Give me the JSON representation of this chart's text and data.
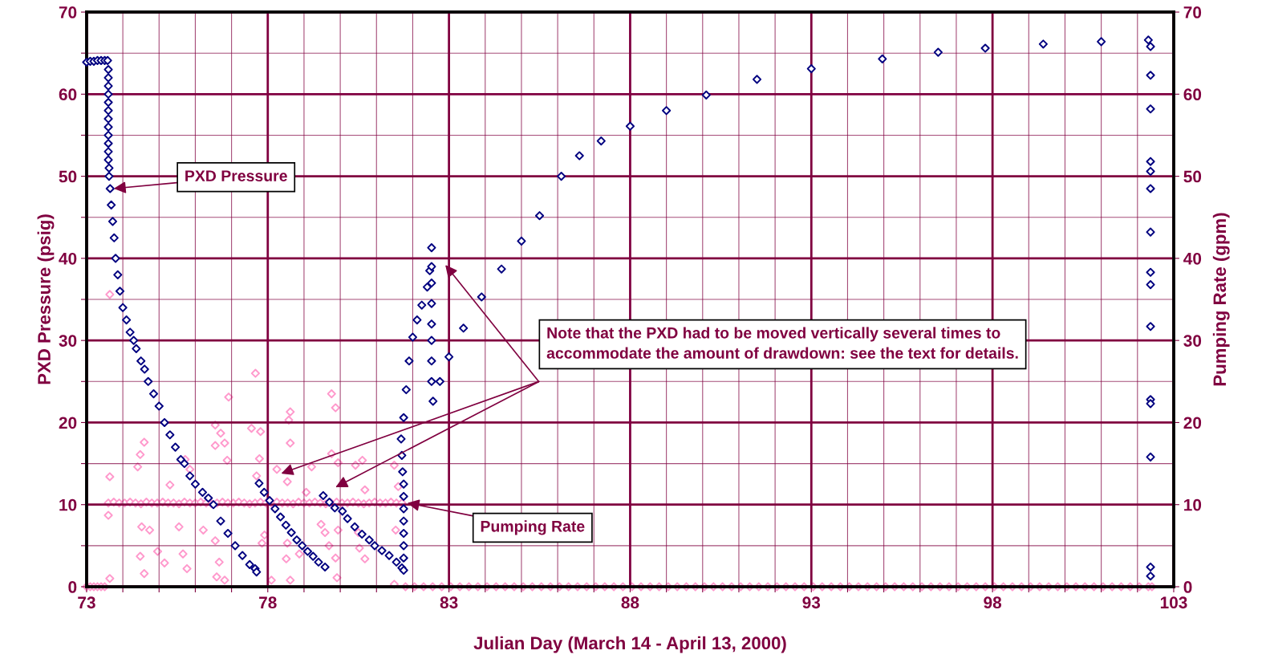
{
  "chart_data": {
    "type": "scatter",
    "xlabel": "Julian Day (March 14 - April 13, 2000)",
    "ylabel": "PXD Pressure (psig)",
    "y2label": "Pumping Rate (gpm)",
    "xlim": [
      73,
      103
    ],
    "xticks": [
      73,
      {
        "value": 74,
        "label": null
      },
      {
        "value": 75,
        "label": null
      },
      {
        "value": 76,
        "label": null
      },
      {
        "value": 77,
        "label": null
      },
      78,
      {
        "value": 79,
        "label": null
      },
      {
        "value": 80,
        "label": null
      },
      {
        "value": 81,
        "label": null
      },
      {
        "value": 82,
        "label": null
      },
      83,
      {
        "value": 84,
        "label": null
      },
      {
        "value": 85,
        "label": null
      },
      {
        "value": 86,
        "label": null
      },
      {
        "value": 87,
        "label": null
      },
      88,
      {
        "value": 89,
        "label": null
      },
      {
        "value": 90,
        "label": null
      },
      {
        "value": 91,
        "label": null
      },
      {
        "value": 92,
        "label": null
      },
      93,
      {
        "value": 94,
        "label": null
      },
      {
        "value": 95,
        "label": null
      },
      {
        "value": 96,
        "label": null
      },
      {
        "value": 97,
        "label": null
      },
      98,
      {
        "value": 99,
        "label": null
      },
      {
        "value": 100,
        "label": null
      },
      {
        "value": 101,
        "label": null
      },
      {
        "value": 102,
        "label": null
      },
      103
    ],
    "ylim": [
      0,
      70
    ],
    "yticks": [
      0,
      {
        "value": 5,
        "label": null
      },
      10,
      {
        "value": 15,
        "label": null
      },
      20,
      {
        "value": 25,
        "label": null
      },
      30,
      {
        "value": 35,
        "label": null
      },
      40,
      {
        "value": 45,
        "label": null
      },
      50,
      {
        "value": 55,
        "label": null
      },
      60,
      {
        "value": 65,
        "label": null
      },
      70
    ],
    "y2lim": [
      0,
      70
    ],
    "y2ticks": [
      0,
      10,
      20,
      30,
      40,
      50,
      60,
      70
    ],
    "grid": true,
    "legend": false,
    "marker": "diamond",
    "annotations": [
      {
        "text": "PXD Pressure",
        "x": 73.75,
        "y": 48.5
      },
      {
        "text": "Pumping Rate",
        "x": 81.85,
        "y": 10.2
      },
      "Note that the PXD had to be moved vertically several times to accommodate the amount of drawdown: see the text for details."
    ],
    "series": [
      {
        "color": "#000080",
        "x": [
          73.0,
          73.1,
          73.2,
          73.3,
          73.4,
          73.5,
          73.58,
          73.6,
          73.6,
          73.6,
          73.6,
          73.6,
          73.6,
          73.6,
          73.6,
          73.6,
          73.6,
          73.6,
          73.6,
          73.62,
          73.62,
          73.65,
          73.68,
          73.72,
          73.76,
          73.8,
          73.86,
          73.92,
          74.0,
          74.1,
          74.2,
          74.3,
          74.37,
          74.5,
          74.6,
          74.7,
          74.85,
          75.0,
          75.15,
          75.3,
          75.45,
          75.6,
          75.7,
          75.85,
          76.0,
          76.2,
          76.36,
          76.5,
          76.7,
          76.9,
          77.1,
          77.3,
          77.5,
          77.65,
          77.69,
          77.76,
          77.9,
          78.05,
          78.2,
          78.35,
          78.5,
          78.65,
          78.8,
          78.95,
          79.1,
          79.25,
          79.4,
          79.58,
          79.53,
          79.7,
          79.85,
          80.06,
          80.2,
          80.4,
          80.6,
          80.8,
          80.95,
          81.15,
          81.35,
          81.55,
          81.7,
          81.75,
          81.75,
          81.75,
          81.75,
          81.75,
          81.75,
          81.75,
          81.75,
          81.72,
          81.7,
          81.68,
          81.75,
          81.82,
          81.9,
          82.0,
          82.12,
          82.25,
          82.4,
          82.47,
          82.52,
          82.52,
          82.52,
          82.52,
          82.52,
          82.52,
          82.52,
          82.52,
          82.56,
          82.75,
          83.0,
          83.4,
          83.9,
          84.45,
          85.0,
          85.5,
          86.1,
          86.6,
          87.2,
          88.0,
          89.0,
          90.1,
          91.5,
          93.0,
          94.96,
          96.5,
          97.8,
          99.4,
          101.0,
          102.3,
          102.36,
          102.36,
          102.36,
          102.36,
          102.36,
          102.36,
          102.36,
          102.36,
          102.36,
          102.36,
          102.36,
          102.36,
          102.36,
          102.36,
          102.36
        ],
        "values": [
          63.9,
          64.0,
          64.0,
          64.1,
          64.1,
          64.1,
          64.1,
          63.0,
          62.0,
          61.0,
          60.0,
          59.0,
          58.0,
          57.0,
          56.0,
          55.0,
          54.0,
          53.0,
          52.0,
          51.0,
          50.0,
          48.5,
          46.5,
          44.5,
          42.5,
          40.0,
          38.0,
          36.0,
          34.0,
          32.5,
          31.0,
          30.0,
          29.0,
          27.5,
          26.5,
          25.0,
          23.5,
          22.0,
          20.0,
          18.5,
          17.0,
          15.5,
          15.0,
          13.5,
          12.5,
          11.5,
          10.8,
          10.0,
          8.0,
          6.5,
          5.0,
          3.8,
          2.7,
          2.2,
          1.8,
          12.6,
          11.5,
          10.5,
          9.5,
          8.5,
          7.5,
          6.6,
          5.7,
          5.0,
          4.3,
          3.7,
          3.0,
          2.4,
          11.1,
          10.3,
          9.6,
          9.2,
          8.3,
          7.3,
          6.4,
          5.7,
          5.0,
          4.4,
          3.8,
          3.0,
          2.3,
          2.0,
          3.5,
          5.0,
          6.5,
          8.0,
          9.5,
          11.0,
          12.5,
          14.0,
          16.0,
          18.0,
          20.6,
          24.0,
          27.5,
          30.4,
          32.5,
          34.3,
          36.5,
          38.5,
          41.3,
          39.0,
          37.0,
          34.5,
          32.0,
          30.0,
          27.5,
          25.0,
          22.6,
          25.0,
          28.0,
          31.5,
          35.3,
          38.7,
          42.1,
          45.2,
          50.0,
          52.5,
          54.3,
          56.1,
          58.0,
          59.9,
          61.8,
          63.1,
          64.3,
          65.1,
          65.6,
          66.1,
          66.4,
          66.6,
          65.8,
          62.3,
          58.2,
          51.8,
          50.6,
          48.5,
          43.2,
          38.3,
          36.8,
          31.7,
          22.8,
          22.3,
          15.8,
          2.4,
          1.3
        ]
      },
      {
        "color": "#ff99cc",
        "axis": "y2",
        "x": [
          73.0,
          73.1,
          73.2,
          73.3,
          73.4,
          73.5,
          73.6,
          73.75,
          73.9,
          74.05,
          74.2,
          74.35,
          74.5,
          74.65,
          74.8,
          74.95,
          75.1,
          75.25,
          75.4,
          75.55,
          75.7,
          75.85,
          76.0,
          76.15,
          76.3,
          76.45,
          76.6,
          76.75,
          76.9,
          77.05,
          77.2,
          77.35,
          77.5,
          77.65,
          77.8,
          77.95,
          78.1,
          78.25,
          78.4,
          78.55,
          78.7,
          78.85,
          79.0,
          79.15,
          79.3,
          79.45,
          79.6,
          79.75,
          79.9,
          80.05,
          80.2,
          80.35,
          80.5,
          80.65,
          80.8,
          80.95,
          81.1,
          81.25,
          81.4,
          81.55,
          81.7,
          73.64,
          73.6,
          73.64,
          73.64,
          74.59,
          74.48,
          74.41,
          74.52,
          74.48,
          74.59,
          74.74,
          74.96,
          75.15,
          75.3,
          75.55,
          75.66,
          75.77,
          75.72,
          75.85,
          76.55,
          76.7,
          76.81,
          76.55,
          76.92,
          76.88,
          76.22,
          76.55,
          76.66,
          76.59,
          76.81,
          77.55,
          77.8,
          77.66,
          77.77,
          77.69,
          77.91,
          77.84,
          78.1,
          78.25,
          78.62,
          78.58,
          78.62,
          78.54,
          78.54,
          78.51,
          78.62,
          78.87,
          79.06,
          79.21,
          79.47,
          79.58,
          79.76,
          79.87,
          79.76,
          79.94,
          79.69,
          79.87,
          79.91,
          79.94,
          80.42,
          80.61,
          80.5,
          80.53,
          80.68,
          80.68,
          81.49,
          81.53,
          81.49,
          81.6,
          81.8,
          82.05,
          82.3,
          82.55,
          82.8,
          83.05,
          83.3,
          83.55,
          83.8,
          84.05,
          84.3,
          84.55,
          84.8,
          85.05,
          85.3,
          85.55,
          85.8,
          86.05,
          86.3,
          86.55,
          86.8,
          87.05,
          87.3,
          87.55,
          87.8,
          88.05,
          88.3,
          88.55,
          88.8,
          89.05,
          89.3,
          89.55,
          89.8,
          90.05,
          90.3,
          90.55,
          90.8,
          91.05,
          91.3,
          91.55,
          91.8,
          92.05,
          92.3,
          92.55,
          92.8,
          93.05,
          93.3,
          93.55,
          93.8,
          94.05,
          94.3,
          94.55,
          94.8,
          95.05,
          95.3,
          95.55,
          95.8,
          96.05,
          96.3,
          96.55,
          96.8,
          97.05,
          97.3,
          97.55,
          97.8,
          98.05,
          98.3,
          98.55,
          98.8,
          99.05,
          99.3,
          99.55,
          99.8,
          100.05,
          100.3,
          100.55,
          100.8,
          101.05,
          101.3,
          101.55,
          101.8,
          102.05,
          102.3,
          102.4
        ],
        "values": [
          0,
          0,
          0,
          0,
          0,
          0,
          10.2,
          10.3,
          10.2,
          10.2,
          10.3,
          10.2,
          10.1,
          10.3,
          10.2,
          10.2,
          10.3,
          10.2,
          10.2,
          10.1,
          10.3,
          10.2,
          10.2,
          10.3,
          10.2,
          10.1,
          10.2,
          10.3,
          10.2,
          10.2,
          10.3,
          10.2,
          10.1,
          10.2,
          10.3,
          10.2,
          10.2,
          10.3,
          10.2,
          10.2,
          10.1,
          10.3,
          10.2,
          10.2,
          10.3,
          10.2,
          10.1,
          10.2,
          10.3,
          10.2,
          10.2,
          10.3,
          10.2,
          10.1,
          10.2,
          10.3,
          10.2,
          10.2,
          10.3,
          10.2,
          10.2,
          13.4,
          8.7,
          1.0,
          35.6,
          17.6,
          16.1,
          14.6,
          7.3,
          3.7,
          1.6,
          6.9,
          4.3,
          2.9,
          12.4,
          7.3,
          4.0,
          2.2,
          15.5,
          14.3,
          19.7,
          18.7,
          17.5,
          17.2,
          23.1,
          15.4,
          6.9,
          5.6,
          3.0,
          1.2,
          0.8,
          19.3,
          18.9,
          26.0,
          15.6,
          13.5,
          6.3,
          5.3,
          0.8,
          14.3,
          21.3,
          20.3,
          17.5,
          12.8,
          5.3,
          3.4,
          0.8,
          4.0,
          11.5,
          14.6,
          7.6,
          6.6,
          23.5,
          21.8,
          16.2,
          15.1,
          5.0,
          3.5,
          1.1,
          6.9,
          14.8,
          15.4,
          6.6,
          4.7,
          3.4,
          11.8,
          14.8,
          6.9,
          0.3,
          12.2,
          0,
          0,
          0,
          0,
          0,
          0,
          0,
          0,
          0,
          0,
          0,
          0,
          0,
          0,
          0,
          0,
          0,
          0,
          0,
          0,
          0,
          0,
          0,
          0,
          0,
          0,
          0,
          0,
          0,
          0,
          0,
          0,
          0,
          0,
          0,
          0,
          0,
          0,
          0,
          0,
          0,
          0,
          0,
          0,
          0,
          0,
          0,
          0,
          0,
          0,
          0,
          0,
          0,
          0,
          0,
          0,
          0,
          0,
          0,
          0,
          0,
          0,
          0,
          0,
          0,
          0,
          0,
          0,
          0,
          0,
          0,
          0,
          0,
          0,
          0,
          0,
          0,
          0,
          0,
          0,
          0,
          0,
          0,
          0
        ]
      }
    ]
  }
}
